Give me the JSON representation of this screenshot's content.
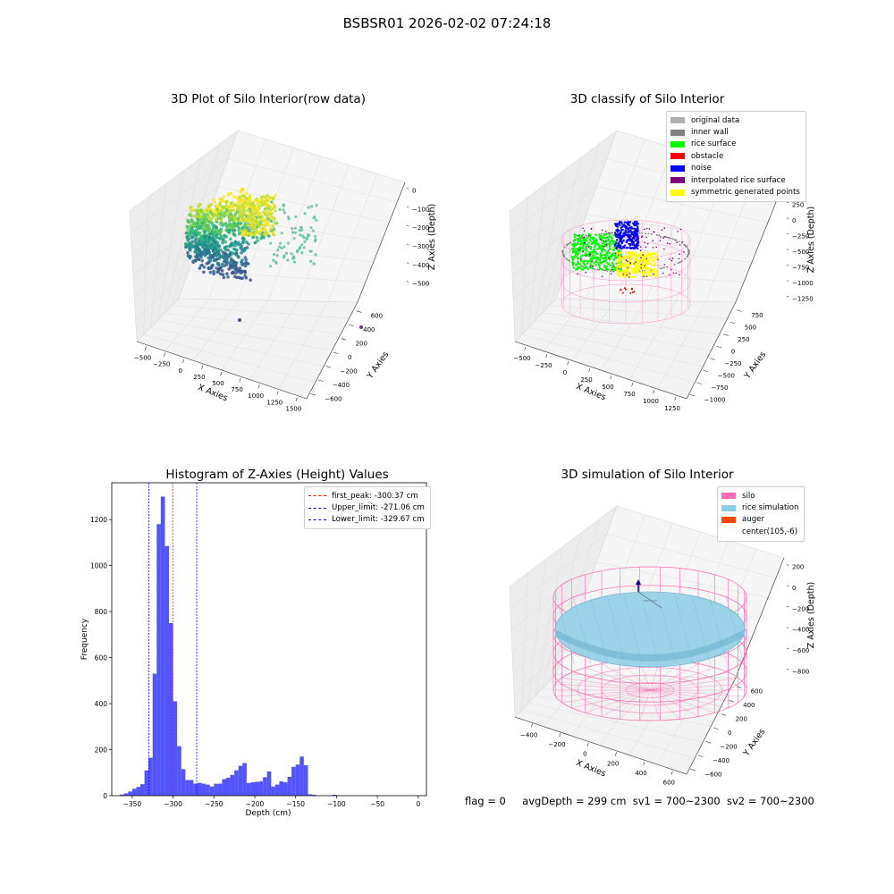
{
  "figure_title": "BSBSR01 2026-02-02 07:24:18",
  "status": {
    "flag": "flag = 0",
    "avgDepth": "avgDepth = 299 cm",
    "sv1": "sv1 = 700~2300",
    "sv2": "sv2 = 700~2300"
  },
  "colors": {
    "pane": "#f2f2f2",
    "grid": "#e0e0e0",
    "hist_bar": "#4444ff",
    "silo": "#ff69b4",
    "rice_sim": "#87ceeb",
    "auger": "#ff4500"
  },
  "chart_data": [
    {
      "type": "scatter",
      "title": "3D Plot of Silo Interior(row data)",
      "xlabel": "X Axies",
      "ylabel": "Y Axies",
      "zlabel": "Z Axies (Depth)",
      "x_ticks": [
        "−500",
        "−250",
        "0",
        "250",
        "500",
        "750",
        "1000",
        "1250",
        "1500"
      ],
      "y_ticks": [
        "−600",
        "−400",
        "−200",
        "0",
        "200",
        "400",
        "600"
      ],
      "z_ticks": [
        "−500",
        "−400",
        "−300",
        "−200",
        "−100",
        "0"
      ],
      "colormap": "viridis",
      "xlim": [
        -600,
        1500
      ],
      "ylim": [
        -700,
        700
      ],
      "zlim": [
        -580,
        20
      ]
    },
    {
      "type": "scatter",
      "title": "3D classify of Silo Interior",
      "xlabel": "X Axies",
      "ylabel": "Y Axies",
      "zlabel": "Z Axies (Depth)",
      "x_ticks": [
        "−500",
        "−250",
        "0",
        "250",
        "500",
        "750",
        "1000",
        "1250"
      ],
      "y_ticks": [
        "−1000",
        "−750",
        "−500",
        "−250",
        "0",
        "250",
        "500",
        "750"
      ],
      "z_ticks": [
        "−1250",
        "−1000",
        "−750",
        "−500",
        "−250",
        "0",
        "250",
        "500"
      ],
      "legend_position": "upper right",
      "legend": [
        {
          "label": "original data",
          "color": "#b0b0b0"
        },
        {
          "label": "inner wall",
          "color": "#808080"
        },
        {
          "label": "rice surface",
          "color": "#00ff00"
        },
        {
          "label": "obstacle",
          "color": "#ff0000"
        },
        {
          "label": "noise",
          "color": "#0000ff"
        },
        {
          "label": "interpolated rice surface",
          "color": "#800080"
        },
        {
          "label": "symmetric generated points",
          "color": "#ffff00"
        }
      ]
    },
    {
      "type": "bar",
      "title": "Histogram of Z-Axies (Height) Values",
      "xlabel": "Depth (cm)",
      "ylabel": "Frequency",
      "xlim": [
        -375,
        10
      ],
      "ylim": [
        0,
        1360
      ],
      "x_ticks": [
        -350,
        -300,
        -250,
        -200,
        -150,
        -100,
        -50,
        0
      ],
      "y_ticks": [
        0,
        200,
        400,
        600,
        800,
        1000,
        1200
      ],
      "bin_width": 5,
      "bins_start": [
        -365,
        -360,
        -355,
        -350,
        -345,
        -340,
        -335,
        -330,
        -325,
        -320,
        -315,
        -310,
        -305,
        -300,
        -295,
        -290,
        -285,
        -280,
        -275,
        -270,
        -265,
        -260,
        -255,
        -250,
        -245,
        -240,
        -235,
        -230,
        -225,
        -220,
        -215,
        -210,
        -205,
        -200,
        -195,
        -190,
        -185,
        -180,
        -175,
        -170,
        -165,
        -160,
        -155,
        -150,
        -145,
        -140,
        -135,
        -130,
        -125,
        -120,
        -115,
        -110,
        -105,
        -100,
        -95,
        -90,
        -85,
        -80,
        -75,
        -70,
        -65,
        -60,
        -55,
        -50,
        -45,
        -40,
        -35,
        -30,
        -25,
        -20,
        -15,
        -10,
        -5,
        0
      ],
      "values": [
        5,
        10,
        18,
        30,
        38,
        50,
        110,
        165,
        530,
        1180,
        1300,
        1085,
        750,
        410,
        215,
        115,
        68,
        68,
        52,
        56,
        52,
        48,
        40,
        52,
        52,
        72,
        78,
        90,
        110,
        130,
        142,
        55,
        58,
        60,
        62,
        80,
        105,
        40,
        48,
        62,
        58,
        82,
        125,
        135,
        170,
        132,
        6,
        4,
        0,
        0,
        0,
        0,
        4,
        0,
        0,
        0,
        0,
        0,
        0,
        0,
        0,
        0,
        0,
        0,
        0,
        0,
        0,
        0,
        0,
        0,
        0,
        0,
        0,
        0
      ],
      "vlines": [
        {
          "label": "first_peak: -300.37 cm",
          "x": -300.37,
          "color": "#ff0000"
        },
        {
          "label": "Upper_limit: -271.06 cm",
          "x": -271.06,
          "color": "#0000ff"
        },
        {
          "label": "Lower_limit: -329.67 cm",
          "x": -329.67,
          "color": "#0000ff"
        }
      ],
      "legend_position": "upper right"
    },
    {
      "type": "scatter",
      "title": "3D simulation of Silo Interior",
      "xlabel": "X Axies",
      "ylabel": "Y Axies",
      "zlabel": "Z Axies (Depth)",
      "x_ticks": [
        "−400",
        "−200",
        "0",
        "200",
        "400",
        "600"
      ],
      "y_ticks": [
        "−600",
        "−400",
        "−200",
        "0",
        "200",
        "400",
        "600"
      ],
      "z_ticks": [
        "−800",
        "−600",
        "−400",
        "−200",
        "0",
        "200"
      ],
      "legend_position": "upper right",
      "legend": [
        {
          "label": "silo",
          "color": "#ff69b4"
        },
        {
          "label": "rice simulation",
          "color": "#87ceeb"
        },
        {
          "label": "auger",
          "color": "#ff4500"
        },
        {
          "label": "center(105,-6)",
          "color": ""
        }
      ]
    }
  ]
}
